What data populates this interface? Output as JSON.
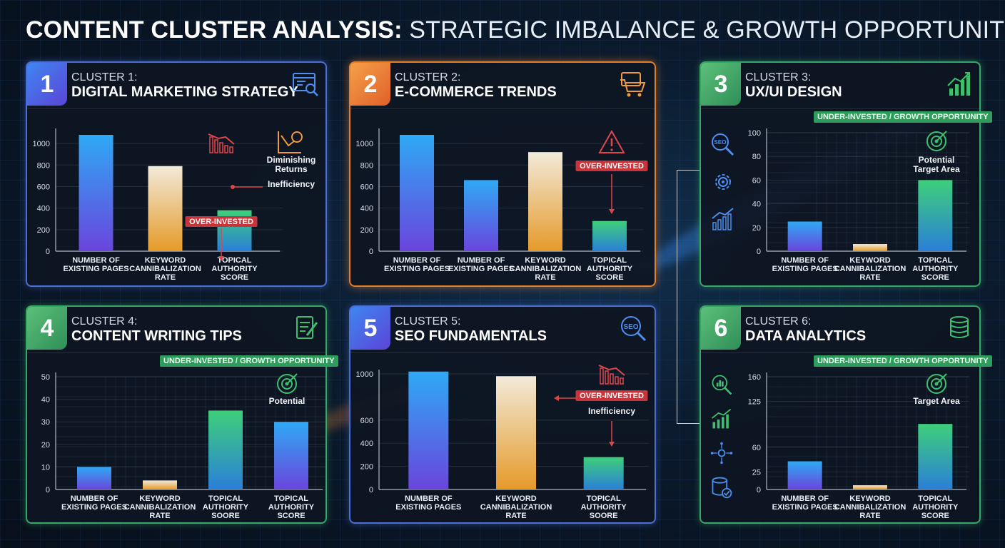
{
  "page": {
    "title_bold": "CONTENT CLUSTER ANALYSIS:",
    "title_light": "STRATEGIC IMBALANCE & GROWTH OPPORTUNITIES"
  },
  "labels": {
    "over_invested": "OVER-INVESTED",
    "under_invested": "UNDER-INVESTED / GROWTH OPPORTUNITY"
  },
  "colors": {
    "blue_accent": "#4c6fd6",
    "orange_accent": "#e47f2c",
    "green_accent": "#37a768",
    "over_invested_red": "#c8343a"
  },
  "clusters": [
    {
      "number": "1",
      "subtitle": "CLUSTER 1:",
      "name": "DIGITAL MARKETING STRATEGY",
      "accent": "blue",
      "header_icon": "browser-search-icon",
      "tag": "over_invested"
    },
    {
      "number": "2",
      "subtitle": "CLUSTER 2:",
      "name": "E-COMMERCE TRENDS",
      "accent": "orange",
      "header_icon": "shopping-cart-icon",
      "tag": "over_invested"
    },
    {
      "number": "3",
      "subtitle": "CLUSTER 3:",
      "name": "UX/UI DESIGN",
      "accent": "green",
      "header_icon": "growth-chart-icon",
      "tag": "under_invested",
      "side_icons": [
        "seo-magnifier-icon",
        "gear-icon",
        "growth-chart-icon"
      ]
    },
    {
      "number": "4",
      "subtitle": "CLUSTER 4:",
      "name": "CONTENT WRITING TIPS",
      "accent": "green",
      "header_icon": "document-pencil-icon",
      "tag": "under_invested"
    },
    {
      "number": "5",
      "subtitle": "CLUSTER 5:",
      "name": "SEO FUNDAMENTALS",
      "accent": "blue",
      "header_icon": "seo-magnifier-icon",
      "tag": "over_invested"
    },
    {
      "number": "6",
      "subtitle": "CLUSTER 6:",
      "name": "DATA ANALYTICS",
      "accent": "green",
      "header_icon": "database-icon",
      "tag": "under_invested",
      "side_icons": [
        "analytics-search-icon",
        "growth-chart-icon",
        "network-bug-icon",
        "database-check-icon"
      ]
    }
  ],
  "chart_data": [
    {
      "type": "bar",
      "categories": [
        "NUMBER OF EXISTING PAGES",
        "KEYWORD CANNIBALIZATION RATE",
        "TOPICAL AUTHORITY SCORE"
      ],
      "values": [
        1080,
        790,
        380
      ],
      "y_ticks": [
        0,
        200,
        400,
        600,
        800,
        1000
      ],
      "ylim": [
        0,
        1100
      ],
      "bar_colors": [
        "blue",
        "gold",
        "green"
      ],
      "grid": false,
      "annotations": [
        {
          "text": "OVER-INVESTED",
          "kind": "tag"
        },
        {
          "text": "Diminishing Returns",
          "kind": "note"
        },
        {
          "text": "Inefficiency",
          "kind": "note"
        }
      ]
    },
    {
      "type": "bar",
      "categories": [
        "NUMBER OF EXISTING PAGES",
        "NUMBER OF EXISTING PAGES",
        "KEYWORD CANNIBALIZATION RATE",
        "TOPICAL AUTHORITY SCORE"
      ],
      "values": [
        1080,
        660,
        920,
        280
      ],
      "y_ticks": [
        0,
        200,
        400,
        600,
        800,
        1000
      ],
      "ylim": [
        0,
        1100
      ],
      "bar_colors": [
        "blue",
        "blue",
        "gold",
        "green"
      ],
      "grid": false,
      "annotations": [
        {
          "text": "OVER-INVESTED",
          "kind": "tag"
        }
      ]
    },
    {
      "type": "bar",
      "categories": [
        "NUMBER OF EXISTING PAGES",
        "KEYWORD CANNIBALIZATION RATE",
        "TOPICAL AUTHORITY SCORE"
      ],
      "values": [
        25,
        6,
        60
      ],
      "y_ticks": [
        0,
        20,
        40,
        60,
        80,
        100
      ],
      "ylim": [
        0,
        100
      ],
      "bar_colors": [
        "blue",
        "gold",
        "green"
      ],
      "grid": true,
      "annotations": [
        {
          "text": "Potential Target Area",
          "kind": "note"
        }
      ]
    },
    {
      "type": "bar",
      "categories": [
        "NUMBER OF EXISTING PAGES",
        "KEYWORD CANNIBALIZATION RATE",
        "TOPICAL AUTHORITY SOORE",
        "TOPICAL AUTHORITY SCORE"
      ],
      "values": [
        10,
        4,
        35,
        30
      ],
      "y_ticks": [
        0,
        10,
        20,
        30,
        40,
        50
      ],
      "ylim": [
        0,
        50
      ],
      "bar_colors": [
        "blue",
        "gold",
        "green",
        "blue"
      ],
      "grid": true,
      "annotations": [
        {
          "text": "Potential",
          "kind": "note"
        }
      ]
    },
    {
      "type": "bar",
      "categories": [
        "NUMBER OF EXISTING PAGES",
        "KEYWORD CANNIBALIZATION RATE",
        "TOPICAL AUTHORITY SOORE"
      ],
      "values": [
        1020,
        980,
        280
      ],
      "y_ticks": [
        0,
        200,
        400,
        600,
        1000
      ],
      "ylim": [
        0,
        1000
      ],
      "bar_colors": [
        "blue",
        "gold",
        "green"
      ],
      "grid": false,
      "annotations": [
        {
          "text": "OVER-INVESTED",
          "kind": "tag"
        },
        {
          "text": "Inefficiency",
          "kind": "note"
        }
      ]
    },
    {
      "type": "bar",
      "categories": [
        "NUMBER OF EXISTING PAGES",
        "KEYWORD CANNIBALIZATION RATE",
        "TOPICAL AUTHORITY SCORE"
      ],
      "values": [
        40,
        6,
        93
      ],
      "y_ticks": [
        0,
        25,
        60,
        125,
        160
      ],
      "ylim": [
        0,
        160
      ],
      "bar_colors": [
        "blue",
        "gold",
        "green"
      ],
      "grid": true,
      "annotations": [
        {
          "text": "Target Area",
          "kind": "note"
        }
      ]
    }
  ]
}
